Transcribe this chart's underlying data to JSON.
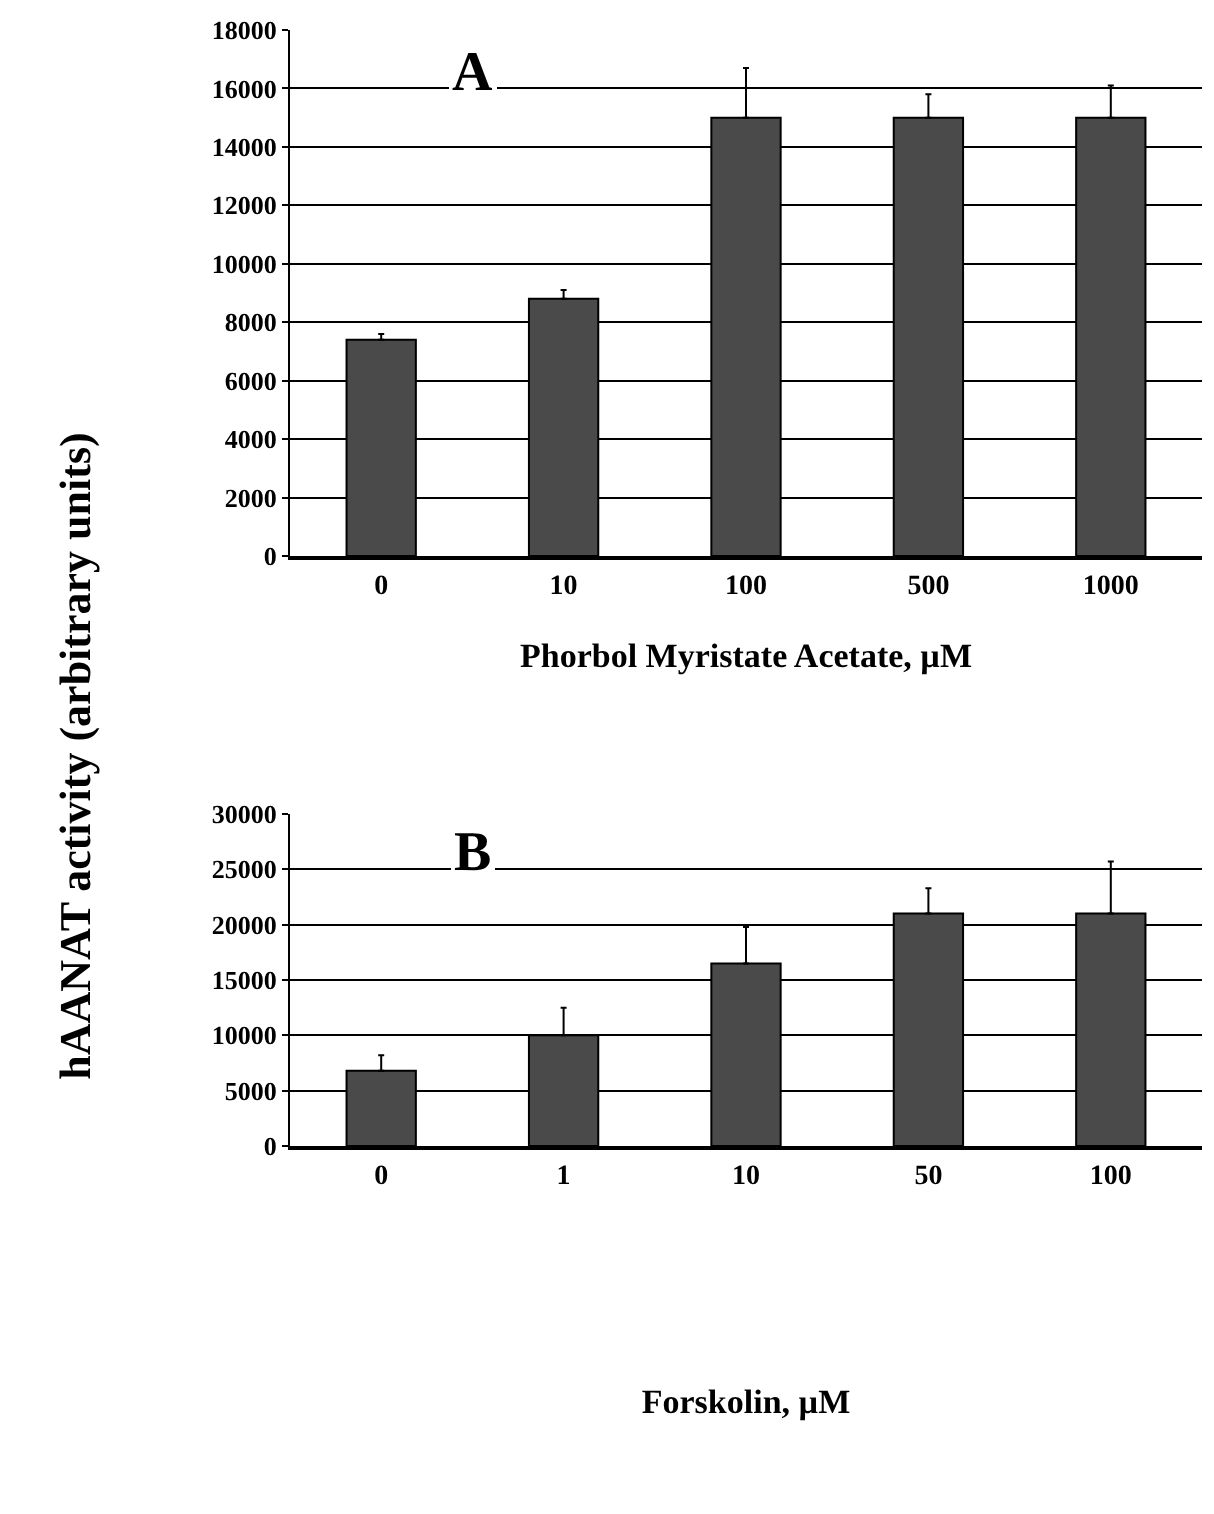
{
  "chart_data": [
    {
      "type": "bar",
      "title": "A",
      "xlabel": "Phorbol Myristate Acetate, µM",
      "ylabel": "hAANAT activity (arbitrary units)",
      "categories": [
        "0",
        "10",
        "100",
        "500",
        "1000"
      ],
      "values": [
        7400,
        8800,
        15000,
        15000,
        15000
      ],
      "errors": [
        [
          7400,
          7600
        ],
        [
          8800,
          9100
        ],
        [
          15000,
          16700
        ],
        [
          15000,
          15800
        ],
        [
          15000,
          16100
        ]
      ],
      "color": "#4a4a4a",
      "ylim": [
        0,
        18000
      ],
      "yticks": [
        0,
        2000,
        4000,
        6000,
        8000,
        10000,
        12000,
        14000,
        16000,
        18000
      ],
      "grid": "y"
    },
    {
      "type": "bar",
      "title": "B",
      "xlabel": "Forskolin, µM",
      "categories": [
        "0",
        "1",
        "10",
        "50",
        "100"
      ],
      "values": [
        6800,
        10000,
        16500,
        21000,
        21000
      ],
      "errors": [
        [
          6800,
          8200
        ],
        [
          10000,
          12500
        ],
        [
          16500,
          19800
        ],
        [
          21000,
          23300
        ],
        [
          21000,
          25700
        ]
      ],
      "color": "#4a4a4a",
      "ylim": [
        0,
        30000
      ],
      "yticks": [
        0,
        5000,
        10000,
        15000,
        20000,
        25000,
        30000
      ],
      "grid": "y"
    }
  ]
}
